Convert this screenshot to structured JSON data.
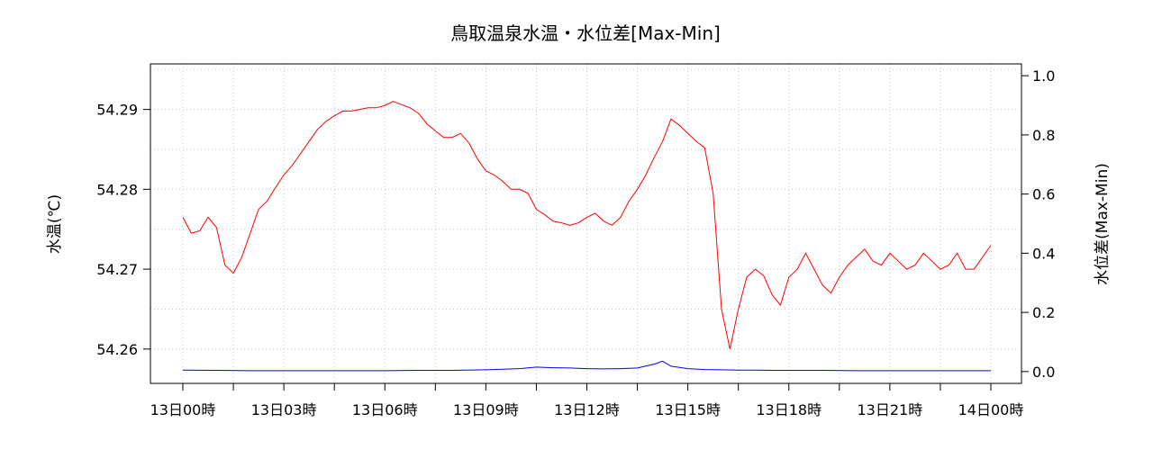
{
  "chart_data": {
    "type": "line",
    "title": "鳥取温泉水温・水位差[Max-Min]",
    "ylabel": "水温(℃)",
    "y2label": "水位差(Max-Min)",
    "ylim": [
      54.2557,
      54.2957
    ],
    "y2lim": [
      -0.04,
      1.04
    ],
    "x_tick_labels": [
      "13日00時",
      "13日03時",
      "13日06時",
      "13日09時",
      "13日12時",
      "13日15時",
      "13日18時",
      "13日21時",
      "14日00時"
    ],
    "y_ticks": [
      "54.26",
      "54.27",
      "54.28",
      "54.29"
    ],
    "y2_ticks": [
      "0.0",
      "0.2",
      "0.4",
      "0.6",
      "0.8",
      "1.0"
    ],
    "grid": true,
    "colors": {
      "temperature": "#ff0000",
      "water_level_diff": "#0000ff"
    },
    "series": [
      {
        "key": "temperature",
        "axis": "left",
        "x_hours": [
          0,
          0.25,
          0.5,
          0.75,
          1,
          1.25,
          1.5,
          1.75,
          2,
          2.25,
          2.5,
          2.75,
          3,
          3.25,
          3.5,
          3.75,
          4,
          4.25,
          4.5,
          4.75,
          5,
          5.25,
          5.5,
          5.75,
          6,
          6.25,
          6.5,
          6.75,
          7,
          7.25,
          7.5,
          7.75,
          8,
          8.25,
          8.5,
          8.75,
          9,
          9.25,
          9.5,
          9.75,
          10,
          10.25,
          10.5,
          10.75,
          11,
          11.25,
          11.5,
          11.75,
          12,
          12.25,
          12.5,
          12.75,
          13,
          13.25,
          13.5,
          13.75,
          14,
          14.25,
          14.5,
          14.75,
          15,
          15.25,
          15.5,
          15.75,
          16,
          16.25,
          16.5,
          16.75,
          17,
          17.25,
          17.5,
          17.75,
          18,
          18.25,
          18.5,
          18.75,
          19,
          19.25,
          19.5,
          19.75,
          20,
          20.25,
          20.5,
          20.75,
          21,
          21.25,
          21.5,
          21.75,
          22,
          22.25,
          22.5,
          22.75,
          23,
          23.25,
          23.5,
          23.75,
          24
        ],
        "values": [
          54.2765,
          54.2745,
          54.2748,
          54.2765,
          54.2752,
          54.2705,
          54.2695,
          54.2715,
          54.2745,
          54.2775,
          54.2785,
          54.2802,
          54.2818,
          54.283,
          54.2845,
          54.286,
          54.2875,
          54.2885,
          54.2892,
          54.2898,
          54.2898,
          54.29,
          54.2902,
          54.2902,
          54.2905,
          54.291,
          54.2906,
          54.2902,
          54.2895,
          54.2882,
          54.2873,
          54.2865,
          54.2865,
          54.287,
          54.2858,
          54.2838,
          54.2823,
          54.2818,
          54.281,
          54.28,
          54.28,
          54.2795,
          54.2775,
          54.2768,
          54.276,
          54.2758,
          54.2755,
          54.2758,
          54.2765,
          54.277,
          54.276,
          54.2755,
          54.2765,
          54.2785,
          54.28,
          54.2818,
          54.284,
          54.286,
          54.2888,
          54.288,
          54.287,
          54.286,
          54.2852,
          54.2795,
          54.265,
          54.26,
          54.265,
          54.269,
          54.27,
          54.2692,
          54.2668,
          54.2655,
          54.269,
          54.27,
          54.272,
          54.27,
          54.268,
          54.267,
          54.269,
          54.2705,
          54.2715,
          54.2725,
          54.271,
          54.2705,
          54.272,
          54.271,
          54.27,
          54.2705,
          54.272,
          54.271,
          54.27,
          54.2705,
          54.272,
          54.27,
          54.27,
          54.2715,
          54.273
        ]
      },
      {
        "key": "water_level_diff",
        "axis": "right",
        "x_hours": [
          0,
          1,
          2,
          3,
          4,
          5,
          6,
          7,
          8,
          9,
          10,
          10.5,
          11,
          11.5,
          12,
          12.5,
          13,
          13.5,
          14,
          14.25,
          14.5,
          15,
          15.5,
          16,
          16.5,
          17,
          17.5,
          18,
          18.5,
          19,
          20,
          21,
          22,
          23,
          24
        ],
        "values": [
          0.005,
          0.004,
          0.003,
          0.003,
          0.003,
          0.003,
          0.003,
          0.004,
          0.004,
          0.006,
          0.01,
          0.015,
          0.013,
          0.012,
          0.01,
          0.009,
          0.01,
          0.012,
          0.025,
          0.035,
          0.018,
          0.01,
          0.007,
          0.006,
          0.005,
          0.005,
          0.004,
          0.004,
          0.004,
          0.004,
          0.003,
          0.003,
          0.003,
          0.003,
          0.003
        ]
      }
    ]
  }
}
